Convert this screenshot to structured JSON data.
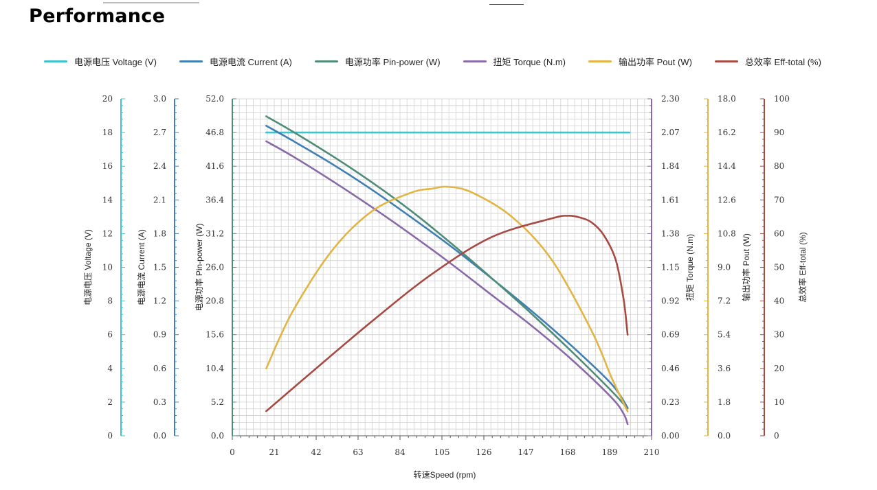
{
  "page": {
    "title": "Performance"
  },
  "chart_data": {
    "type": "line",
    "xlabel": "转速Speed (rpm)",
    "xlim": [
      0,
      210
    ],
    "xticks": [
      0,
      21,
      42,
      63,
      84,
      105,
      126,
      147,
      168,
      189,
      210
    ],
    "legend_position": "top",
    "grid": true,
    "axes": [
      {
        "id": "voltage",
        "label": "电源电压 Voltage (V)",
        "side": "left",
        "min": 0,
        "max": 20,
        "ticks": [
          "0",
          "2",
          "4",
          "6",
          "8",
          "10",
          "12",
          "14",
          "16",
          "18",
          "20"
        ],
        "color": "#3cc3cc"
      },
      {
        "id": "current",
        "label": "电源电流 Current (A)",
        "side": "left",
        "min": 0,
        "max": 3.0,
        "ticks": [
          "0.0",
          "0.3",
          "0.6",
          "0.9",
          "1.2",
          "1.5",
          "1.8",
          "2.1",
          "2.4",
          "2.7",
          "3.0"
        ],
        "color": "#3f7fb3"
      },
      {
        "id": "pin",
        "label": "电源功率 Pin-power (W)",
        "side": "left",
        "min": 0,
        "max": 52.0,
        "ticks": [
          "0.0",
          "5.2",
          "10.4",
          "15.6",
          "20.8",
          "26.0",
          "31.2",
          "36.4",
          "41.6",
          "46.8",
          "52.0"
        ],
        "color": "#4e8c78"
      },
      {
        "id": "torque",
        "label": "扭矩 Torque (N.m)",
        "side": "right",
        "min": 0,
        "max": 2.3,
        "ticks": [
          "0.00",
          "0.23",
          "0.46",
          "0.69",
          "0.92",
          "1.15",
          "1.38",
          "1.61",
          "1.84",
          "2.07",
          "2.30"
        ],
        "color": "#8a69a8"
      },
      {
        "id": "pout",
        "label": "输出功率 Pout (W)",
        "side": "right",
        "min": 0,
        "max": 18.0,
        "ticks": [
          "0.0",
          "1.8",
          "3.6",
          "5.4",
          "7.2",
          "9.0",
          "10.8",
          "12.6",
          "14.4",
          "16.2",
          "18.0"
        ],
        "color": "#e2b443"
      },
      {
        "id": "eff",
        "label": "总效率 Eff-total (%)",
        "side": "right",
        "min": 0,
        "max": 100,
        "ticks": [
          "0",
          "10",
          "20",
          "30",
          "40",
          "50",
          "60",
          "70",
          "80",
          "90",
          "100"
        ],
        "color": "#a64a42"
      }
    ],
    "series": [
      {
        "name": "电源电压 Voltage (V)",
        "axis": "voltage",
        "color": "#3cc3cc",
        "x": [
          17,
          60,
          100,
          140,
          180,
          199
        ],
        "y": [
          18.0,
          18.0,
          18.0,
          18.0,
          18.0,
          18.0
        ]
      },
      {
        "name": "电源电流 Current (A)",
        "axis": "current",
        "color": "#3f7fb3",
        "x": [
          17,
          30,
          50,
          70,
          90,
          110,
          130,
          150,
          170,
          190,
          198
        ],
        "y": [
          2.76,
          2.63,
          2.42,
          2.19,
          1.94,
          1.68,
          1.4,
          1.11,
          0.8,
          0.46,
          0.25
        ]
      },
      {
        "name": "电源功率 Pin-power (W)",
        "axis": "pin",
        "color": "#4e8c78",
        "x": [
          17,
          30,
          50,
          70,
          90,
          110,
          130,
          150,
          170,
          190,
          198
        ],
        "y": [
          49.3,
          47.0,
          43.2,
          39.1,
          34.6,
          29.6,
          24.3,
          18.8,
          13.0,
          6.9,
          4.2
        ]
      },
      {
        "name": "扭矩 Torque (N.m)",
        "axis": "torque",
        "color": "#8a69a8",
        "x": [
          17,
          30,
          50,
          70,
          90,
          110,
          130,
          150,
          170,
          190,
          196,
          198
        ],
        "y": [
          2.01,
          1.91,
          1.74,
          1.56,
          1.37,
          1.17,
          0.96,
          0.75,
          0.52,
          0.26,
          0.15,
          0.08
        ]
      },
      {
        "name": "输出功率 Pout (W)",
        "axis": "pout",
        "color": "#e2b443",
        "x": [
          17,
          30,
          50,
          70,
          90,
          100,
          108,
          120,
          140,
          160,
          180,
          190,
          198
        ],
        "y": [
          3.6,
          6.6,
          9.9,
          12.0,
          13.0,
          13.2,
          13.3,
          13.0,
          11.7,
          9.4,
          5.6,
          3.1,
          1.3
        ]
      },
      {
        "name": "总效率 Eff-total (%)",
        "axis": "eff",
        "color": "#a64a42",
        "x": [
          17,
          40,
          70,
          100,
          130,
          160,
          168,
          174,
          180,
          186,
          192,
          196,
          198
        ],
        "y": [
          7.3,
          19,
          34,
          48,
          59,
          64.5,
          65.3,
          64.8,
          63.3,
          59.6,
          52.3,
          40.5,
          30.0
        ]
      }
    ]
  }
}
